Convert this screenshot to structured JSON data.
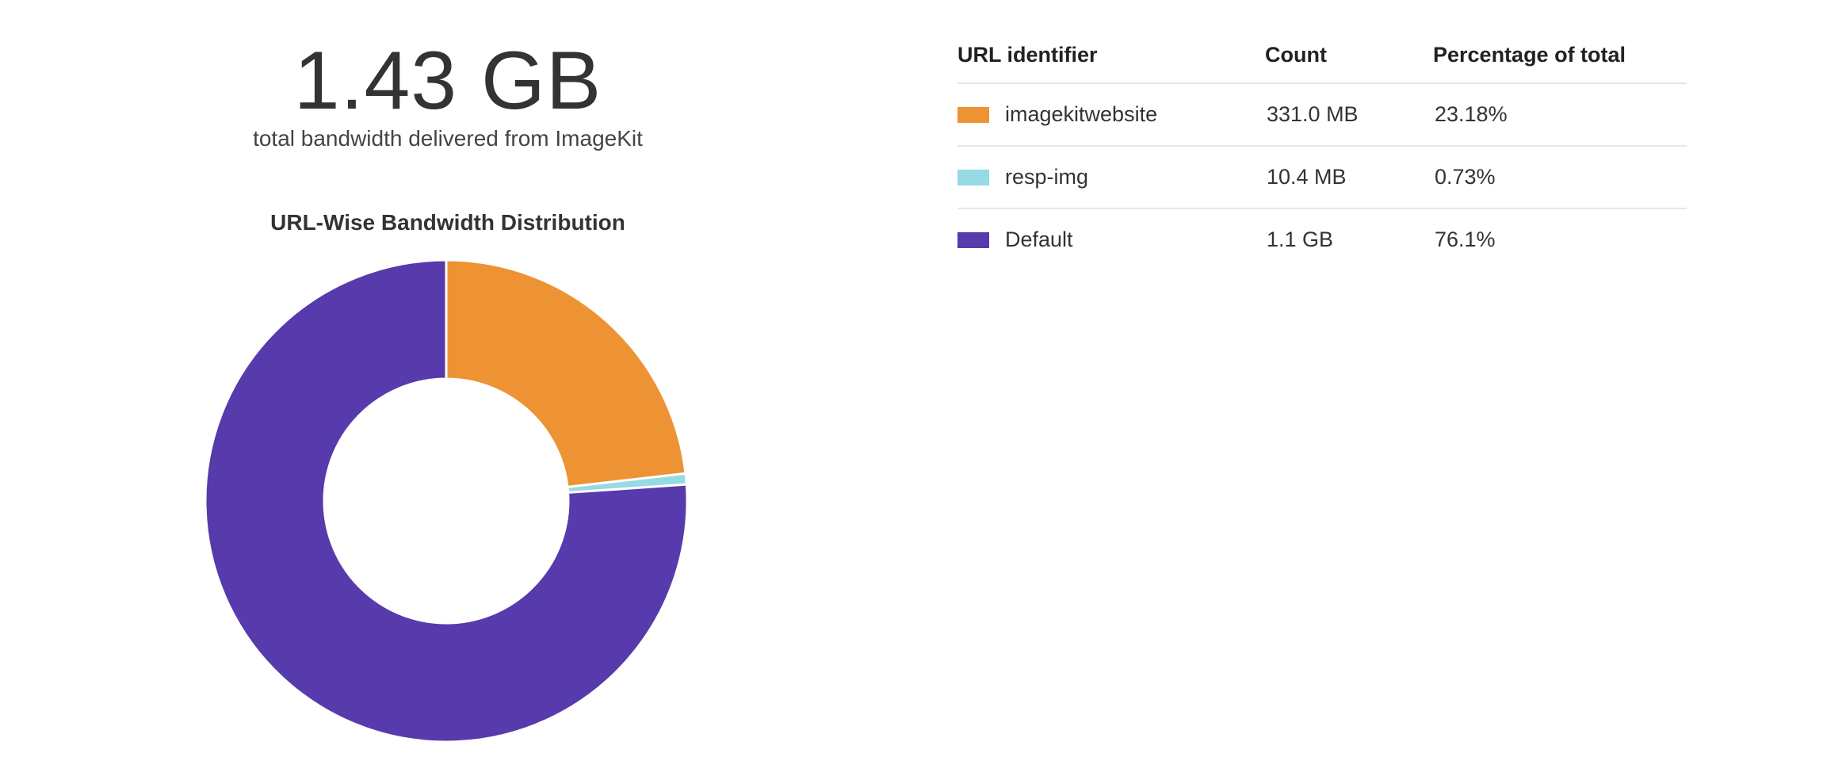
{
  "summary": {
    "total_value": "1.43 GB",
    "caption": "total bandwidth delivered from ImageKit"
  },
  "table": {
    "headers": {
      "url": "URL identifier",
      "count": "Count",
      "percentage": "Percentage of total"
    },
    "rows": [
      {
        "label": "imagekitwebsite",
        "count": "331.0 MB",
        "percentage": "23.18%",
        "color": "#ED9334"
      },
      {
        "label": "resp-img",
        "count": "10.4 MB",
        "percentage": "0.73%",
        "color": "#96DAE4"
      },
      {
        "label": "Default",
        "count": "1.1 GB",
        "percentage": "76.1%",
        "color": "#573AAB"
      }
    ]
  },
  "chart_data": {
    "type": "pie",
    "title": "URL-Wise Bandwidth Distribution",
    "donut": true,
    "slices": [
      {
        "name": "imagekitwebsite",
        "value": 23.18,
        "color": "#ED9334"
      },
      {
        "name": "resp-img",
        "value": 0.73,
        "color": "#96DAE4"
      },
      {
        "name": "Default",
        "value": 76.1,
        "color": "#573AAB"
      }
    ]
  }
}
